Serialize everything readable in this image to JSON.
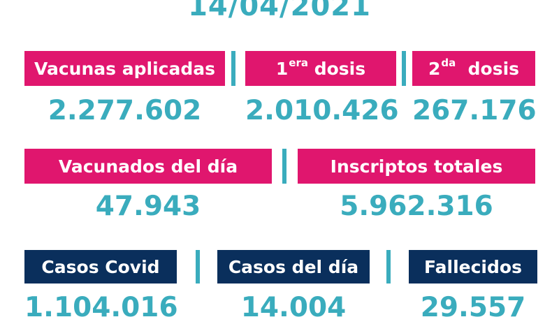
{
  "date": "14/04/2021",
  "row1": {
    "aplicadas": {
      "label": "Vacunas aplicadas",
      "value": "2.277.602"
    },
    "primera": {
      "label_prefix": "1",
      "label_sup": "era",
      "label_suffix": " dosis",
      "value": "2.010.426"
    },
    "segunda": {
      "label_prefix": "2",
      "label_sup": "da",
      "label_suffix": "  dosis",
      "value": "267.176"
    }
  },
  "row2": {
    "vacunados_dia": {
      "label": "Vacunados del día",
      "value": "47.943"
    },
    "inscriptos": {
      "label": "Inscriptos totales",
      "value": "5.962.316"
    }
  },
  "row3": {
    "casos_covid": {
      "label": "Casos Covid",
      "value": "1.104.016"
    },
    "casos_dia": {
      "label": "Casos del día",
      "value": "14.004"
    },
    "fallecidos": {
      "label": "Fallecidos",
      "value": "29.557"
    }
  },
  "colors": {
    "pink": "#e0166e",
    "navy": "#0a2f5c",
    "teal": "#3aacbd"
  }
}
